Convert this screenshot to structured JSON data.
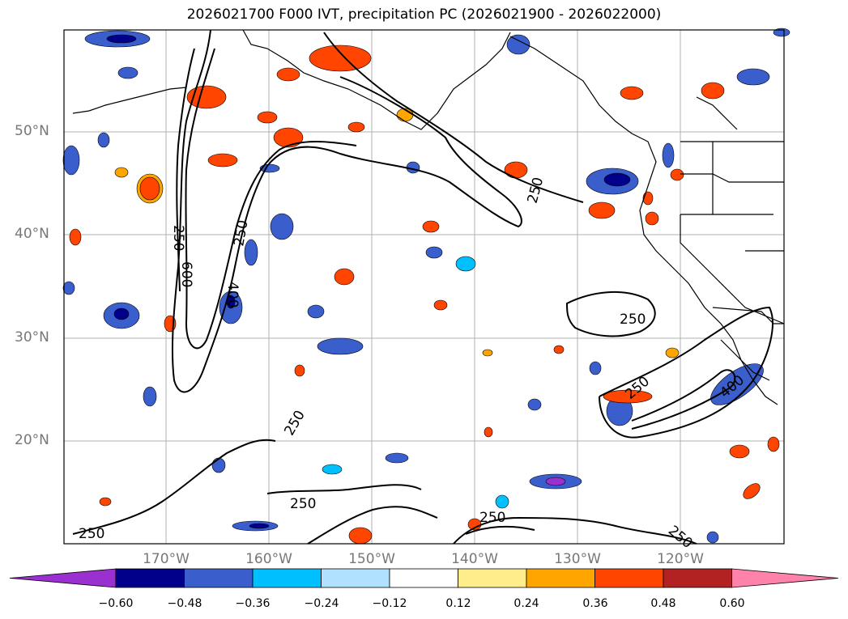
{
  "title": "2026021700 F000 IVT, precipitation PC (2026021900 - 2026022000)",
  "lat_labels": [
    "50°N",
    "40°N",
    "30°N",
    "20°N"
  ],
  "lon_labels": [
    "170°W",
    "160°W",
    "150°W",
    "140°W",
    "130°W",
    "120°W"
  ],
  "ivt_contour_levels": [
    "250",
    "400",
    "600"
  ],
  "contour_labels": [
    "250",
    "400",
    "250",
    "250",
    "250",
    "600",
    "250",
    "250",
    "250",
    "400",
    "250",
    "250",
    "250"
  ],
  "colorbar": {
    "ticks": [
      "−0.60",
      "−0.48",
      "−0.36",
      "−0.24",
      "−0.12",
      "0.12",
      "0.24",
      "0.36",
      "0.48",
      "0.60"
    ],
    "colors": [
      "#9b30d0",
      "#00008b",
      "#3a5fcd",
      "#00bfff",
      "#b0e2ff",
      "#ffffff",
      "#ffec8b",
      "#ffa500",
      "#ff4500",
      "#b22222",
      "#ff82ab"
    ]
  }
}
